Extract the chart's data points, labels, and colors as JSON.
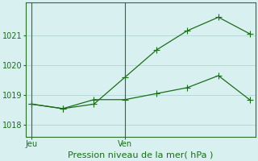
{
  "line1_x": [
    0,
    1,
    2,
    3,
    4,
    5,
    6,
    7
  ],
  "line1_y": [
    1018.7,
    1018.55,
    1018.7,
    1019.6,
    1020.5,
    1021.15,
    1021.6,
    1021.05
  ],
  "line2_x": [
    0,
    1,
    2,
    3,
    4,
    5,
    6,
    7
  ],
  "line2_y": [
    1018.7,
    1018.55,
    1018.85,
    1018.85,
    1019.05,
    1019.25,
    1019.65,
    1018.85
  ],
  "line_color": "#1a6e1a",
  "background_color": "#d8f0ef",
  "grid_color": "#b8d8d8",
  "axis_color": "#2d6e2d",
  "xlabel": "Pression niveau de la mer( hPa )",
  "yticks": [
    1018,
    1019,
    1020,
    1021
  ],
  "ylim": [
    1017.6,
    1022.1
  ],
  "xlim": [
    -0.2,
    7.2
  ],
  "xtick_positions": [
    0,
    3
  ],
  "xtick_labels": [
    "Jeu",
    "Ven"
  ],
  "vline_x": [
    0,
    3
  ],
  "tick_fontsize": 7,
  "xlabel_fontsize": 8,
  "linewidth": 0.9,
  "markersize": 3
}
